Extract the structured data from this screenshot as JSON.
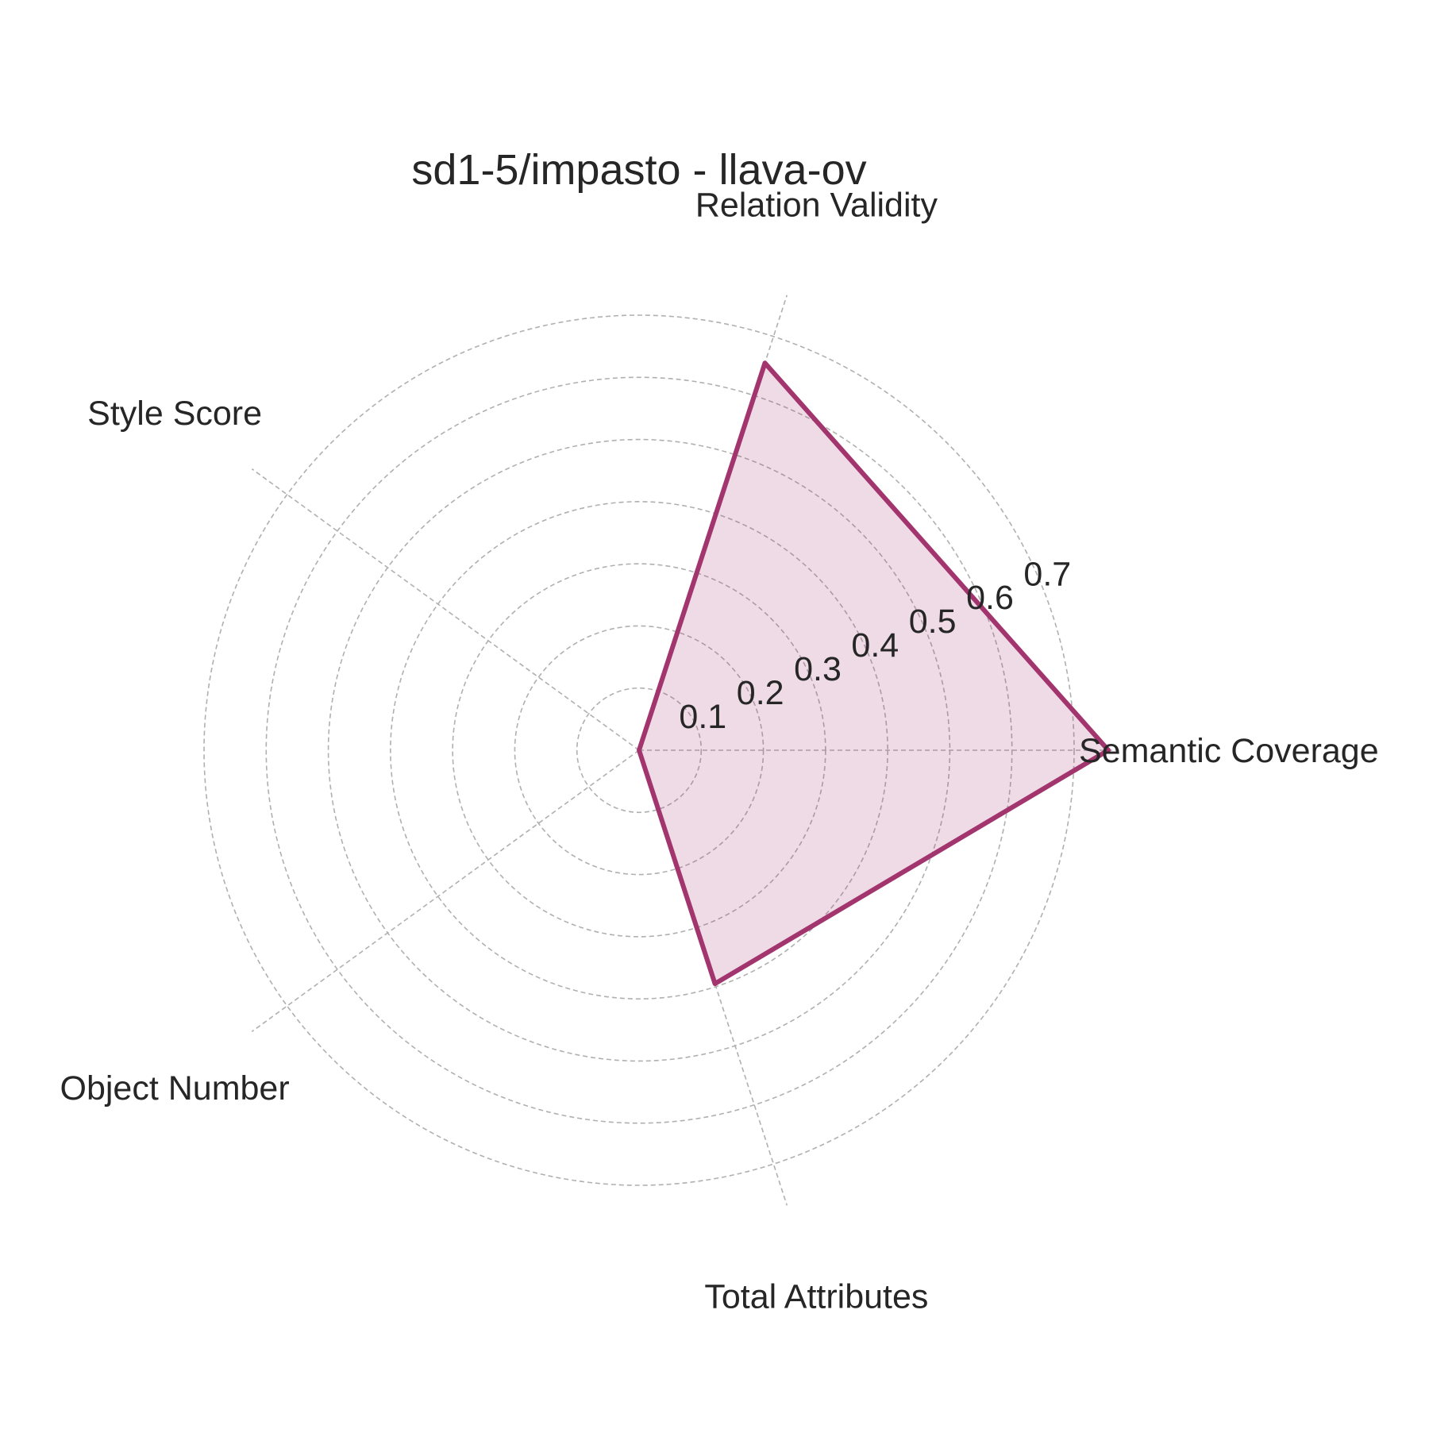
{
  "chart_data": {
    "type": "radar",
    "title": "sd1-5/impasto - llava-ov",
    "axes": [
      "Semantic Coverage",
      "Relation Validity",
      "Style Score",
      "Object Number",
      "Total Attributes"
    ],
    "rlim": [
      0,
      0.7
    ],
    "r_ticks": [
      0.1,
      0.2,
      0.3,
      0.4,
      0.5,
      0.6,
      0.7
    ],
    "r_tick_labels": [
      "0.1",
      "0.2",
      "0.3",
      "0.4",
      "0.5",
      "0.6",
      "0.7"
    ],
    "grid": true,
    "series": [
      {
        "values": [
          0.755,
          0.655,
          0.0,
          0.0,
          0.395
        ],
        "color": "#A3356E",
        "fill_opacity": 0.18
      }
    ]
  }
}
